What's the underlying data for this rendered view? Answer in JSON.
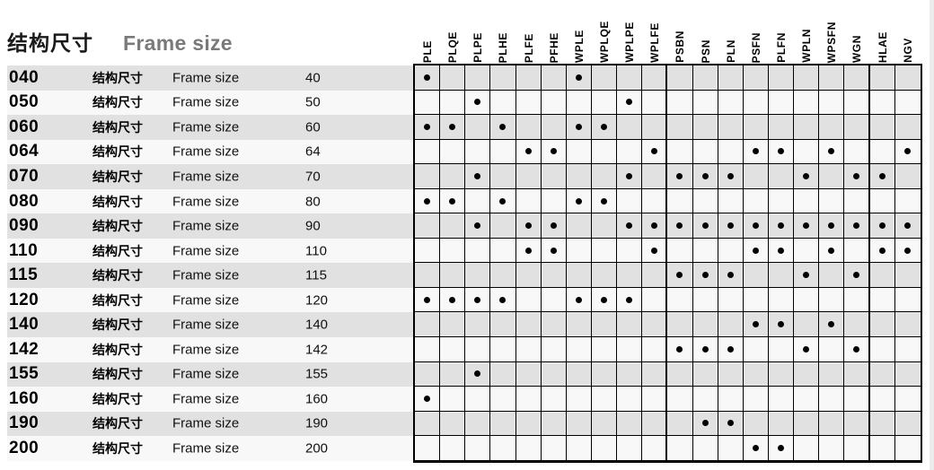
{
  "page": {
    "title_cn": "结构尺寸",
    "title_en": "Frame size"
  },
  "table": {
    "columns": [
      "PLE",
      "PLQE",
      "PLPE",
      "PLHE",
      "PLFE",
      "PFHE",
      "WPLE",
      "WPLQE",
      "WPLPE",
      "WPLFE",
      "PSBN",
      "PSN",
      "PLN",
      "PSFN",
      "PLFN",
      "WPLN",
      "WPSFN",
      "WGN",
      "HLAE",
      "NGV"
    ],
    "group_separators_after": [
      "WPLFE",
      "WGN"
    ],
    "row_label_cn": "结构尺寸",
    "row_label_en": "Frame size",
    "dot_marker": "availability-dot",
    "rows": [
      {
        "code": "040",
        "size": "40",
        "available": [
          "PLE",
          "WPLE"
        ]
      },
      {
        "code": "050",
        "size": "50",
        "available": [
          "PLPE",
          "WPLPE"
        ]
      },
      {
        "code": "060",
        "size": "60",
        "available": [
          "PLE",
          "PLQE",
          "PLHE",
          "WPLE",
          "WPLQE"
        ]
      },
      {
        "code": "064",
        "size": "64",
        "available": [
          "PLFE",
          "PFHE",
          "WPLFE",
          "PSFN",
          "PLFN",
          "WPSFN",
          "NGV"
        ]
      },
      {
        "code": "070",
        "size": "70",
        "available": [
          "PLPE",
          "WPLPE",
          "PSBN",
          "PSN",
          "PLN",
          "WPLN",
          "WGN",
          "HLAE"
        ]
      },
      {
        "code": "080",
        "size": "80",
        "available": [
          "PLE",
          "PLQE",
          "PLHE",
          "WPLE",
          "WPLQE"
        ]
      },
      {
        "code": "090",
        "size": "90",
        "available": [
          "PLPE",
          "PLFE",
          "PFHE",
          "WPLPE",
          "WPLFE",
          "PSBN",
          "PSN",
          "PLN",
          "PSFN",
          "PLFN",
          "WPLN",
          "WPSFN",
          "WGN",
          "HLAE",
          "NGV"
        ]
      },
      {
        "code": "110",
        "size": "110",
        "available": [
          "PLFE",
          "PFHE",
          "WPLFE",
          "PSFN",
          "PLFN",
          "WPSFN",
          "HLAE",
          "NGV"
        ]
      },
      {
        "code": "115",
        "size": "115",
        "available": [
          "PSBN",
          "PSN",
          "PLN",
          "WPLN",
          "WGN"
        ]
      },
      {
        "code": "120",
        "size": "120",
        "available": [
          "PLE",
          "PLQE",
          "PLPE",
          "PLHE",
          "WPLE",
          "WPLQE",
          "WPLPE"
        ]
      },
      {
        "code": "140",
        "size": "140",
        "available": [
          "PSFN",
          "PLFN",
          "WPSFN"
        ]
      },
      {
        "code": "142",
        "size": "142",
        "available": [
          "PSBN",
          "PSN",
          "PLN",
          "WPLN",
          "WGN"
        ]
      },
      {
        "code": "155",
        "size": "155",
        "available": [
          "PLPE"
        ]
      },
      {
        "code": "160",
        "size": "160",
        "available": [
          "PLE"
        ]
      },
      {
        "code": "190",
        "size": "190",
        "available": [
          "PSN",
          "PLN"
        ]
      },
      {
        "code": "200",
        "size": "200",
        "available": [
          "PSFN",
          "PLFN"
        ]
      }
    ]
  },
  "colors": {
    "row_shaded": "#e1e1e1",
    "row_plain": "#f8f8f8",
    "title_en_gray": "#7a7a7a",
    "grid_line": "#000000",
    "dot": "#000000"
  }
}
